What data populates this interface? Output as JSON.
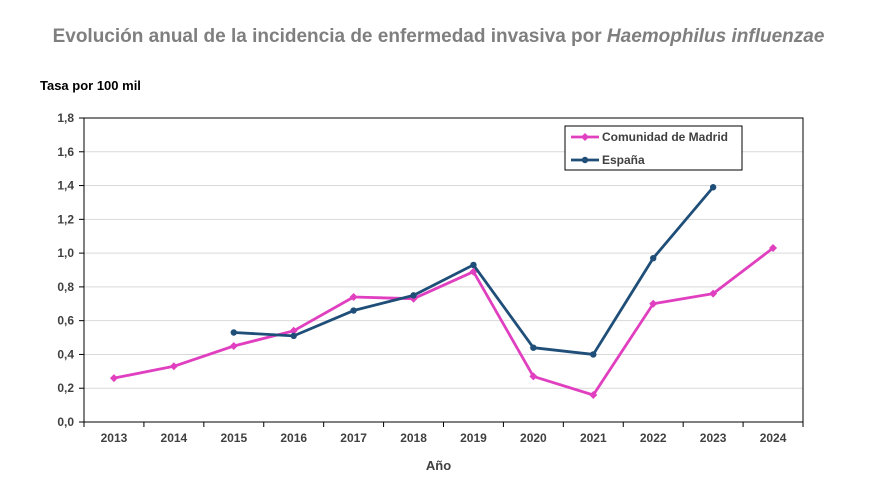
{
  "chart_data": {
    "type": "line",
    "title_main": "Evolución anual de la incidencia de enfermedad invasiva por ",
    "title_italic": "Haemophilus influenzae",
    "ylabel": "Tasa por 100 mil",
    "xlabel": "Año",
    "categories": [
      "2013",
      "2014",
      "2015",
      "2016",
      "2017",
      "2018",
      "2019",
      "2020",
      "2021",
      "2022",
      "2023",
      "2024"
    ],
    "ylim": [
      0,
      1.8
    ],
    "yticks": [
      "0,0",
      "0,2",
      "0,4",
      "0,6",
      "0,8",
      "1,0",
      "1,2",
      "1,4",
      "1,6",
      "1,8"
    ],
    "grid": true,
    "legend_position": "top-right",
    "series": [
      {
        "name": "Comunidad de Madrid",
        "color": "#e040c0",
        "marker": "diamond",
        "values": [
          0.26,
          0.33,
          0.45,
          0.54,
          0.74,
          0.73,
          0.89,
          0.27,
          0.16,
          0.7,
          0.76,
          1.03
        ]
      },
      {
        "name": "España",
        "color": "#1f4e79",
        "marker": "circle",
        "values": [
          null,
          null,
          0.53,
          0.51,
          0.66,
          0.75,
          0.93,
          0.44,
          0.4,
          0.97,
          1.39,
          null
        ]
      }
    ]
  }
}
